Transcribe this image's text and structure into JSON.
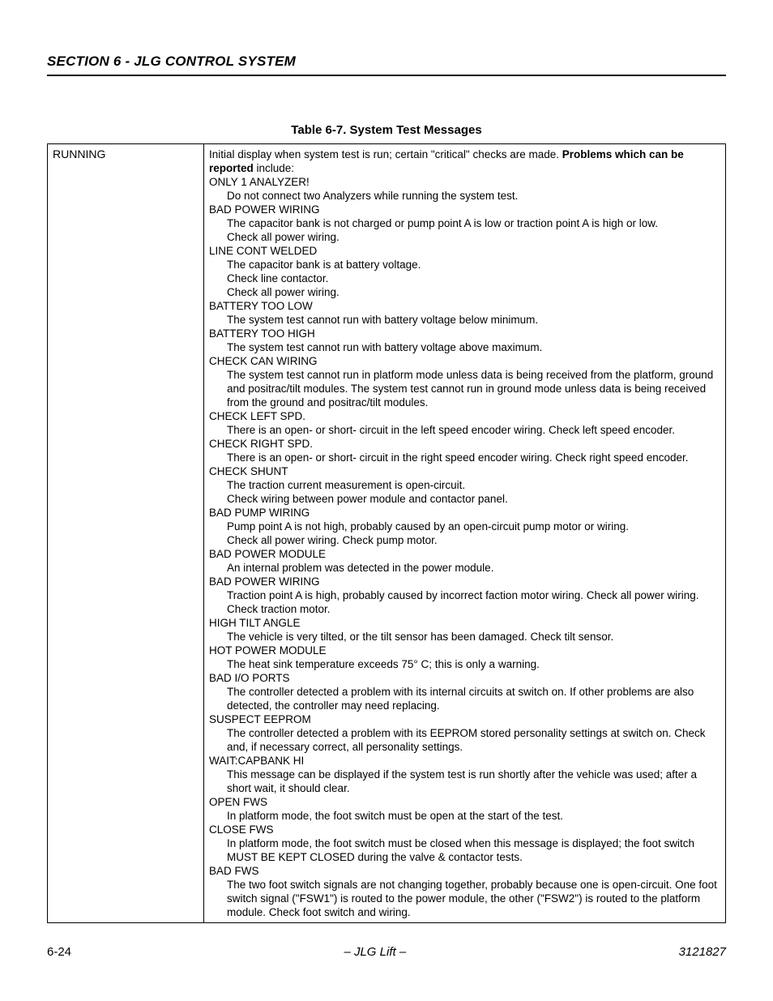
{
  "section_header": "SECTION 6 - JLG CONTROL SYSTEM",
  "table_caption": "Table 6-7. System Test Messages",
  "left_label": "RUNNING",
  "intro_prefix": "Initial display when system test is run; certain \"critical\" checks are made. ",
  "intro_bold": "Problems which can be reported",
  "intro_suffix": " include:",
  "items": [
    {
      "h": "ONLY 1 ANALYZER!",
      "d": [
        "Do not connect two Analyzers while running the system test."
      ]
    },
    {
      "h": "BAD POWER WIRING",
      "d": [
        "The capacitor bank is not charged or pump point A is low or traction point A is high or low.",
        "Check all power wiring."
      ]
    },
    {
      "h": "LINE CONT WELDED",
      "d": [
        "The capacitor bank is at battery voltage.",
        "Check line contactor.",
        "Check all power wiring."
      ]
    },
    {
      "h": "BATTERY TOO LOW",
      "d": [
        "The system test cannot run with battery voltage below minimum."
      ]
    },
    {
      "h": "BATTERY TOO HIGH",
      "d": [
        "The system test cannot run with battery voltage above maximum."
      ]
    },
    {
      "h": "CHECK CAN WIRING",
      "d": [
        "The system test cannot run in platform mode unless data is being received from the platform, ground and positrac/tilt modules. The system test cannot run in ground mode unless data is being received from the ground and positrac/tilt modules."
      ]
    },
    {
      "h": "CHECK LEFT SPD.",
      "d": [
        "There is an open- or short- circuit in the left speed encoder wiring. Check left speed encoder."
      ]
    },
    {
      "h": "CHECK RIGHT SPD.",
      "d": [
        "There is an open- or short- circuit in the right speed encoder wiring. Check right speed encoder."
      ]
    },
    {
      "h": "CHECK SHUNT",
      "d": [
        "The traction current measurement is open-circuit.",
        "Check wiring between power module and contactor panel."
      ]
    },
    {
      "h": "BAD PUMP WIRING",
      "d": [
        "Pump point A is not high, probably caused by an open-circuit pump motor or wiring.",
        "Check all power wiring. Check pump motor."
      ]
    },
    {
      "h": "BAD POWER MODULE",
      "d": [
        "An internal problem was detected in the power module."
      ]
    },
    {
      "h": "BAD POWER WIRING",
      "d": [
        "Traction point A is high, probably caused by incorrect faction motor wiring. Check all power wiring. Check traction motor."
      ]
    },
    {
      "h": "HIGH TILT ANGLE",
      "d": [
        "The vehicle is very tilted, or the tilt sensor has been damaged. Check tilt sensor."
      ]
    },
    {
      "h": "HOT POWER MODULE",
      "d": [
        "The heat sink temperature exceeds 75° C; this is only a warning."
      ]
    },
    {
      "h": "BAD I/O PORTS",
      "d": [
        "The controller detected a problem with its internal circuits at switch on. If other problems are also detected, the controller may need replacing."
      ]
    },
    {
      "h": "SUSPECT EEPROM",
      "d": [
        "The controller detected a problem with its EEPROM stored personality settings at switch on. Check and, if necessary correct, all personality settings."
      ]
    },
    {
      "h": "WAIT:CAPBANK HI",
      "d": [
        "This message can be displayed if the system test is run shortly after the vehicle was used; after a short wait, it should clear."
      ]
    },
    {
      "h": "OPEN FWS",
      "d": [
        "In platform mode, the foot switch must be open at the start of the test."
      ]
    },
    {
      "h": "CLOSE FWS",
      "d": [
        "In platform mode, the foot switch must be closed when this message is displayed; the foot switch MUST BE KEPT CLOSED during the valve & contactor tests."
      ]
    },
    {
      "h": "BAD FWS",
      "d": [
        "The two foot switch signals are not changing together, probably because one is open-circuit. One foot switch signal (\"FSW1\") is routed to the power module, the other (\"FSW2\") is routed to the platform module. Check foot switch and wiring."
      ]
    }
  ],
  "footer": {
    "page": "6-24",
    "mid": "– JLG Lift –",
    "doc": "3121827"
  }
}
